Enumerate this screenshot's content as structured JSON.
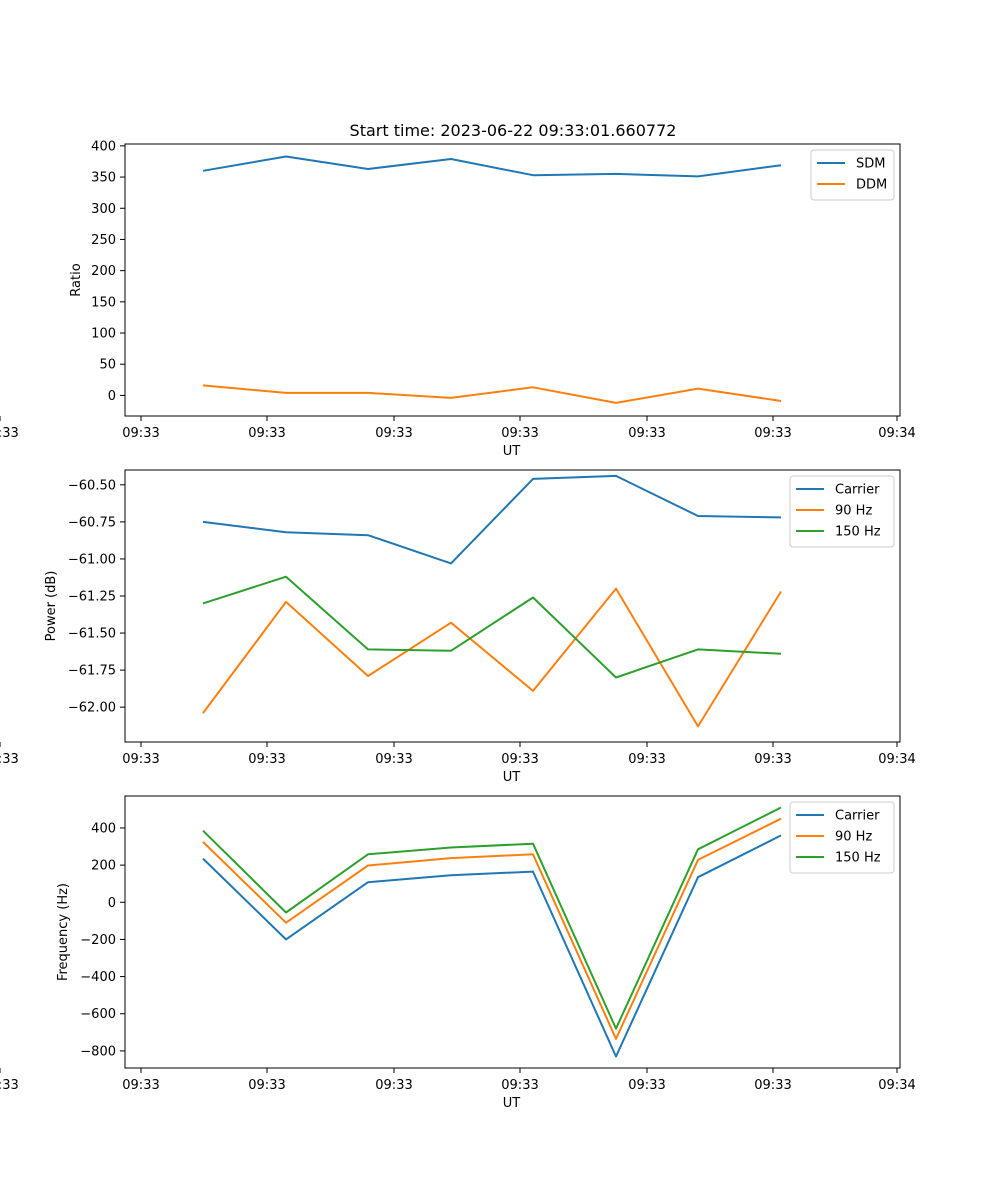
{
  "figure": {
    "title": "Start time: 2023-06-22 09:33:01.660772"
  },
  "chart_data": [
    {
      "type": "line",
      "title": "Start time: 2023-06-22 09:33:01.660772",
      "xlabel": "UT",
      "ylabel": "Ratio",
      "x_tick_labels": [
        "09:33",
        "09:33",
        "09:33",
        "09:33",
        "09:33",
        "09:33",
        "09:33"
      ],
      "x_last_tick_label": "09:34",
      "y_ticks": [
        0,
        50,
        100,
        150,
        200,
        250,
        300,
        350,
        400
      ],
      "y_tick_labels": [
        "0",
        "50",
        "100",
        "150",
        "200",
        "250",
        "300",
        "350",
        "400"
      ],
      "ylim": [
        -33,
        403
      ],
      "legend_location": "upper right",
      "series": [
        {
          "name": "SDM",
          "color": "#1f77b4",
          "values": [
            360,
            383,
            363,
            379,
            353,
            355,
            351,
            369
          ]
        },
        {
          "name": "DDM",
          "color": "#ff7f0e",
          "values": [
            16,
            4,
            4,
            -4,
            13,
            -12,
            11,
            -9
          ]
        }
      ]
    },
    {
      "type": "line",
      "xlabel": "UT",
      "ylabel": "Power (dB)",
      "x_tick_labels": [
        "09:33",
        "09:33",
        "09:33",
        "09:33",
        "09:33",
        "09:33",
        "09:33"
      ],
      "x_last_tick_label": "09:34",
      "y_ticks": [
        -62.0,
        -61.75,
        -61.5,
        -61.25,
        -61.0,
        -60.75,
        -60.5
      ],
      "y_tick_labels": [
        "−62.00",
        "−61.75",
        "−61.50",
        "−61.25",
        "−61.00",
        "−60.75",
        "−60.50"
      ],
      "ylim": [
        -62.235,
        -60.4
      ],
      "legend_location": "upper right",
      "series": [
        {
          "name": "Carrier",
          "color": "#1f77b4",
          "values": [
            -60.75,
            -60.82,
            -60.84,
            -61.03,
            -60.46,
            -60.44,
            -60.71,
            -60.72
          ]
        },
        {
          "name": "90 Hz",
          "color": "#ff7f0e",
          "values": [
            -62.04,
            -61.29,
            -61.79,
            -61.43,
            -61.89,
            -61.2,
            -62.13,
            -61.22
          ]
        },
        {
          "name": "150 Hz",
          "color": "#2ca02c",
          "values": [
            -61.3,
            -61.12,
            -61.61,
            -61.62,
            -61.26,
            -61.8,
            -61.61,
            -61.64
          ]
        }
      ]
    },
    {
      "type": "line",
      "xlabel": "UT",
      "ylabel": "Frequency (Hz)",
      "x_tick_labels": [
        "09:33",
        "09:33",
        "09:33",
        "09:33",
        "09:33",
        "09:33",
        "09:33"
      ],
      "x_last_tick_label": "09:34",
      "y_ticks": [
        -800,
        -600,
        -400,
        -200,
        0,
        200,
        400
      ],
      "y_tick_labels": [
        "−800",
        "−600",
        "−400",
        "−200",
        "0",
        "200",
        "400"
      ],
      "ylim": [
        -892,
        572
      ],
      "legend_location": "upper right",
      "series": [
        {
          "name": "Carrier",
          "color": "#1f77b4",
          "values": [
            235,
            -200,
            108,
            145,
            165,
            -830,
            135,
            360
          ]
        },
        {
          "name": "90 Hz",
          "color": "#ff7f0e",
          "values": [
            325,
            -110,
            198,
            238,
            258,
            -735,
            228,
            450
          ]
        },
        {
          "name": "150 Hz",
          "color": "#2ca02c",
          "values": [
            385,
            -55,
            258,
            295,
            315,
            -680,
            285,
            510
          ]
        }
      ]
    }
  ]
}
